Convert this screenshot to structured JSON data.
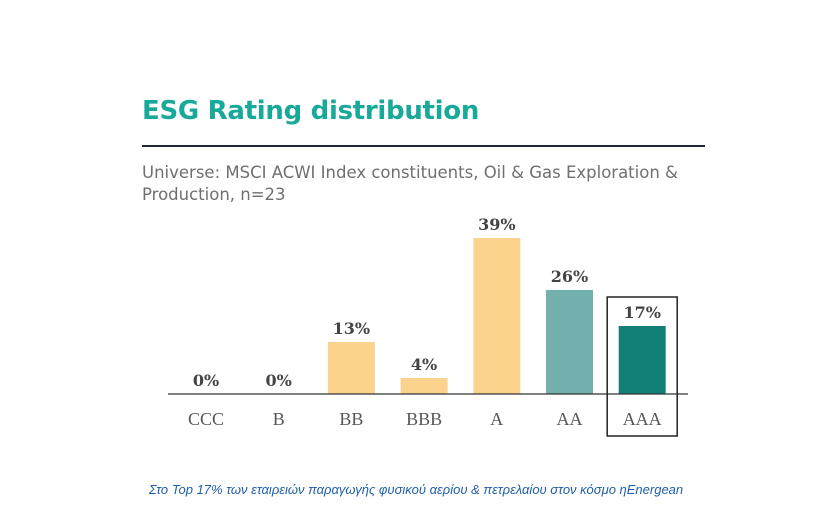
{
  "header": {
    "title": "ESG Rating distribution",
    "subtitle": "Universe: MSCI ACWI Index constituents, Oil & Gas Exploration & Production, n=23"
  },
  "chart_data": {
    "type": "bar",
    "title": "ESG Rating distribution",
    "subtitle": "Universe: MSCI ACWI Index constituents, Oil & Gas Exploration & Production, n=23",
    "categories": [
      "CCC",
      "B",
      "BB",
      "BBB",
      "A",
      "AA",
      "AAA"
    ],
    "values": [
      0,
      0,
      13,
      4,
      39,
      26,
      17
    ],
    "value_labels": [
      "0%",
      "0%",
      "13%",
      "4%",
      "39%",
      "26%",
      "17%"
    ],
    "unit": "%",
    "ylim": [
      0,
      39
    ],
    "highlighted_category": "AAA",
    "colors": {
      "CCC": "#fbd38d",
      "B": "#fbd38d",
      "BB": "#fbd38d",
      "BBB": "#fbd38d",
      "A": "#fbd38d",
      "AA": "#73b0ad",
      "AAA": "#147f75"
    },
    "xlabel": "",
    "ylabel": "",
    "grid": false
  },
  "caption": "Στο Top 17% των εταιρειών παραγωγής φυσικού αερίου & πετρελαίου στον κόσμο ηEnergean"
}
